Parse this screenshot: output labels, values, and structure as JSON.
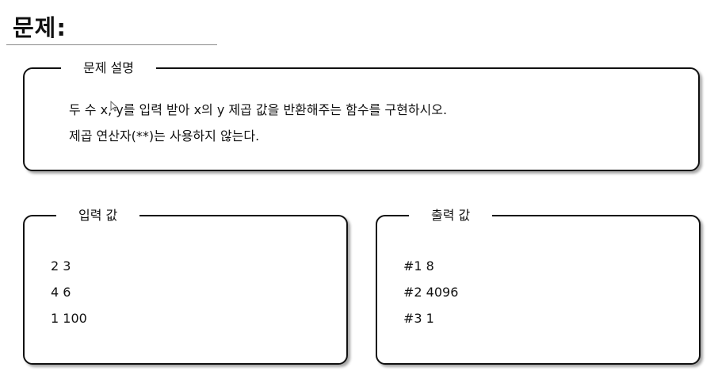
{
  "title": "문제:",
  "description": {
    "label": "문제 설명",
    "lines": [
      "두 수 x, y를 입력 받아 x의 y 제곱 값을 반환해주는 함수를 구현하시오.",
      "제곱 연산자(**)는 사용하지 않는다."
    ]
  },
  "input": {
    "label": "입력 값",
    "lines": [
      "2 3",
      "4 6",
      "1 100"
    ]
  },
  "output": {
    "label": "출력 값",
    "lines": [
      "#1 8",
      "#2 4096",
      "#3 1"
    ]
  }
}
